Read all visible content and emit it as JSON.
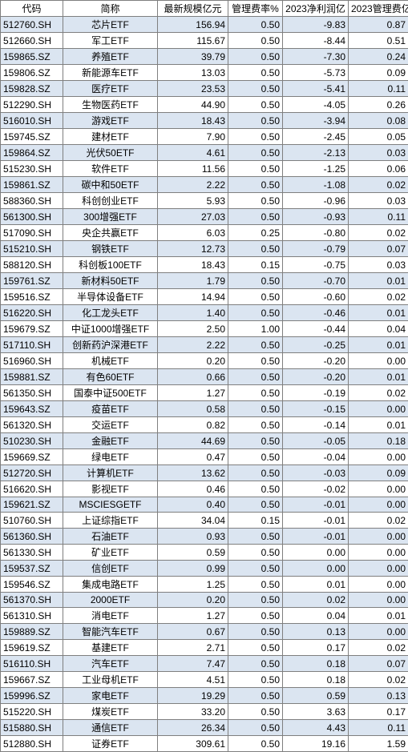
{
  "table": {
    "headers": {
      "code": "代码",
      "name": "简称",
      "scale": "最新规模亿元",
      "fee_rate": "管理费率%",
      "profit": "2023净利润亿",
      "mgmt_fee": "2023管理费亿"
    },
    "colors": {
      "alt_row_bg": "#dbe5f1",
      "row_bg": "#ffffff",
      "border": "#7f7f7f"
    },
    "rows": [
      {
        "code": "512760.SH",
        "name": "芯片ETF",
        "scale": "156.94",
        "fee": "0.50",
        "profit": "-9.83",
        "mgmt": "0.87"
      },
      {
        "code": "512660.SH",
        "name": "军工ETF",
        "scale": "115.67",
        "fee": "0.50",
        "profit": "-8.44",
        "mgmt": "0.51"
      },
      {
        "code": "159865.SZ",
        "name": "养殖ETF",
        "scale": "39.79",
        "fee": "0.50",
        "profit": "-7.30",
        "mgmt": "0.24"
      },
      {
        "code": "159806.SZ",
        "name": "新能源车ETF",
        "scale": "13.03",
        "fee": "0.50",
        "profit": "-5.73",
        "mgmt": "0.09"
      },
      {
        "code": "159828.SZ",
        "name": "医疗ETF",
        "scale": "23.53",
        "fee": "0.50",
        "profit": "-5.41",
        "mgmt": "0.11"
      },
      {
        "code": "512290.SH",
        "name": "生物医药ETF",
        "scale": "44.90",
        "fee": "0.50",
        "profit": "-4.05",
        "mgmt": "0.26"
      },
      {
        "code": "516010.SH",
        "name": "游戏ETF",
        "scale": "18.43",
        "fee": "0.50",
        "profit": "-3.94",
        "mgmt": "0.08"
      },
      {
        "code": "159745.SZ",
        "name": "建材ETF",
        "scale": "7.90",
        "fee": "0.50",
        "profit": "-2.45",
        "mgmt": "0.05"
      },
      {
        "code": "159864.SZ",
        "name": "光伏50ETF",
        "scale": "4.61",
        "fee": "0.50",
        "profit": "-2.13",
        "mgmt": "0.03"
      },
      {
        "code": "515230.SH",
        "name": "软件ETF",
        "scale": "11.56",
        "fee": "0.50",
        "profit": "-1.25",
        "mgmt": "0.06"
      },
      {
        "code": "159861.SZ",
        "name": "碳中和50ETF",
        "scale": "2.22",
        "fee": "0.50",
        "profit": "-1.08",
        "mgmt": "0.02"
      },
      {
        "code": "588360.SH",
        "name": "科创创业ETF",
        "scale": "5.93",
        "fee": "0.50",
        "profit": "-0.96",
        "mgmt": "0.03"
      },
      {
        "code": "561300.SH",
        "name": "300增强ETF",
        "scale": "27.03",
        "fee": "0.50",
        "profit": "-0.93",
        "mgmt": "0.11"
      },
      {
        "code": "517090.SH",
        "name": "央企共赢ETF",
        "scale": "6.03",
        "fee": "0.25",
        "profit": "-0.80",
        "mgmt": "0.02"
      },
      {
        "code": "515210.SH",
        "name": "钢铁ETF",
        "scale": "12.73",
        "fee": "0.50",
        "profit": "-0.79",
        "mgmt": "0.07"
      },
      {
        "code": "588120.SH",
        "name": "科创板100ETF",
        "scale": "18.43",
        "fee": "0.15",
        "profit": "-0.75",
        "mgmt": "0.03"
      },
      {
        "code": "159761.SZ",
        "name": "新材料50ETF",
        "scale": "1.79",
        "fee": "0.50",
        "profit": "-0.70",
        "mgmt": "0.01"
      },
      {
        "code": "159516.SZ",
        "name": "半导体设备ETF",
        "scale": "14.94",
        "fee": "0.50",
        "profit": "-0.60",
        "mgmt": "0.02"
      },
      {
        "code": "516220.SH",
        "name": "化工龙头ETF",
        "scale": "1.40",
        "fee": "0.50",
        "profit": "-0.46",
        "mgmt": "0.01"
      },
      {
        "code": "159679.SZ",
        "name": "中证1000增强ETF",
        "scale": "2.50",
        "fee": "1.00",
        "profit": "-0.44",
        "mgmt": "0.04"
      },
      {
        "code": "517110.SH",
        "name": "创新药沪深港ETF",
        "scale": "2.22",
        "fee": "0.50",
        "profit": "-0.25",
        "mgmt": "0.01"
      },
      {
        "code": "516960.SH",
        "name": "机械ETF",
        "scale": "0.20",
        "fee": "0.50",
        "profit": "-0.20",
        "mgmt": "0.00"
      },
      {
        "code": "159881.SZ",
        "name": "有色60ETF",
        "scale": "0.66",
        "fee": "0.50",
        "profit": "-0.20",
        "mgmt": "0.01"
      },
      {
        "code": "561350.SH",
        "name": "国泰中证500ETF",
        "scale": "1.27",
        "fee": "0.50",
        "profit": "-0.19",
        "mgmt": "0.02"
      },
      {
        "code": "159643.SZ",
        "name": "疫苗ETF",
        "scale": "0.58",
        "fee": "0.50",
        "profit": "-0.15",
        "mgmt": "0.00"
      },
      {
        "code": "561320.SH",
        "name": "交运ETF",
        "scale": "0.82",
        "fee": "0.50",
        "profit": "-0.14",
        "mgmt": "0.01"
      },
      {
        "code": "510230.SH",
        "name": "金融ETF",
        "scale": "44.69",
        "fee": "0.50",
        "profit": "-0.05",
        "mgmt": "0.18"
      },
      {
        "code": "159669.SZ",
        "name": "绿电ETF",
        "scale": "0.47",
        "fee": "0.50",
        "profit": "-0.04",
        "mgmt": "0.00"
      },
      {
        "code": "512720.SH",
        "name": "计算机ETF",
        "scale": "13.62",
        "fee": "0.50",
        "profit": "-0.03",
        "mgmt": "0.09"
      },
      {
        "code": "516620.SH",
        "name": "影视ETF",
        "scale": "0.46",
        "fee": "0.50",
        "profit": "-0.02",
        "mgmt": "0.00"
      },
      {
        "code": "159621.SZ",
        "name": "MSCIESGETF",
        "scale": "0.40",
        "fee": "0.50",
        "profit": "-0.01",
        "mgmt": "0.00"
      },
      {
        "code": "510760.SH",
        "name": "上证综指ETF",
        "scale": "34.04",
        "fee": "0.15",
        "profit": "-0.01",
        "mgmt": "0.02"
      },
      {
        "code": "561360.SH",
        "name": "石油ETF",
        "scale": "0.93",
        "fee": "0.50",
        "profit": "-0.01",
        "mgmt": "0.00"
      },
      {
        "code": "561330.SH",
        "name": "矿业ETF",
        "scale": "0.59",
        "fee": "0.50",
        "profit": "0.00",
        "mgmt": "0.00"
      },
      {
        "code": "159537.SZ",
        "name": "信创ETF",
        "scale": "0.99",
        "fee": "0.50",
        "profit": "0.00",
        "mgmt": "0.00"
      },
      {
        "code": "159546.SZ",
        "name": "集成电路ETF",
        "scale": "1.25",
        "fee": "0.50",
        "profit": "0.01",
        "mgmt": "0.00"
      },
      {
        "code": "561370.SH",
        "name": "2000ETF",
        "scale": "0.20",
        "fee": "0.50",
        "profit": "0.02",
        "mgmt": "0.00"
      },
      {
        "code": "561310.SH",
        "name": "消电ETF",
        "scale": "1.27",
        "fee": "0.50",
        "profit": "0.04",
        "mgmt": "0.01"
      },
      {
        "code": "159889.SZ",
        "name": "智能汽车ETF",
        "scale": "0.67",
        "fee": "0.50",
        "profit": "0.13",
        "mgmt": "0.00"
      },
      {
        "code": "159619.SZ",
        "name": "基建ETF",
        "scale": "2.71",
        "fee": "0.50",
        "profit": "0.17",
        "mgmt": "0.02"
      },
      {
        "code": "516110.SH",
        "name": "汽车ETF",
        "scale": "7.47",
        "fee": "0.50",
        "profit": "0.18",
        "mgmt": "0.07"
      },
      {
        "code": "159667.SZ",
        "name": "工业母机ETF",
        "scale": "4.51",
        "fee": "0.50",
        "profit": "0.18",
        "mgmt": "0.02"
      },
      {
        "code": "159996.SZ",
        "name": "家电ETF",
        "scale": "19.29",
        "fee": "0.50",
        "profit": "0.59",
        "mgmt": "0.13"
      },
      {
        "code": "515220.SH",
        "name": "煤炭ETF",
        "scale": "33.20",
        "fee": "0.50",
        "profit": "3.63",
        "mgmt": "0.17"
      },
      {
        "code": "515880.SH",
        "name": "通信ETF",
        "scale": "26.34",
        "fee": "0.50",
        "profit": "4.43",
        "mgmt": "0.11"
      },
      {
        "code": "512880.SH",
        "name": "证券ETF",
        "scale": "309.61",
        "fee": "0.50",
        "profit": "19.16",
        "mgmt": "1.59"
      }
    ]
  }
}
